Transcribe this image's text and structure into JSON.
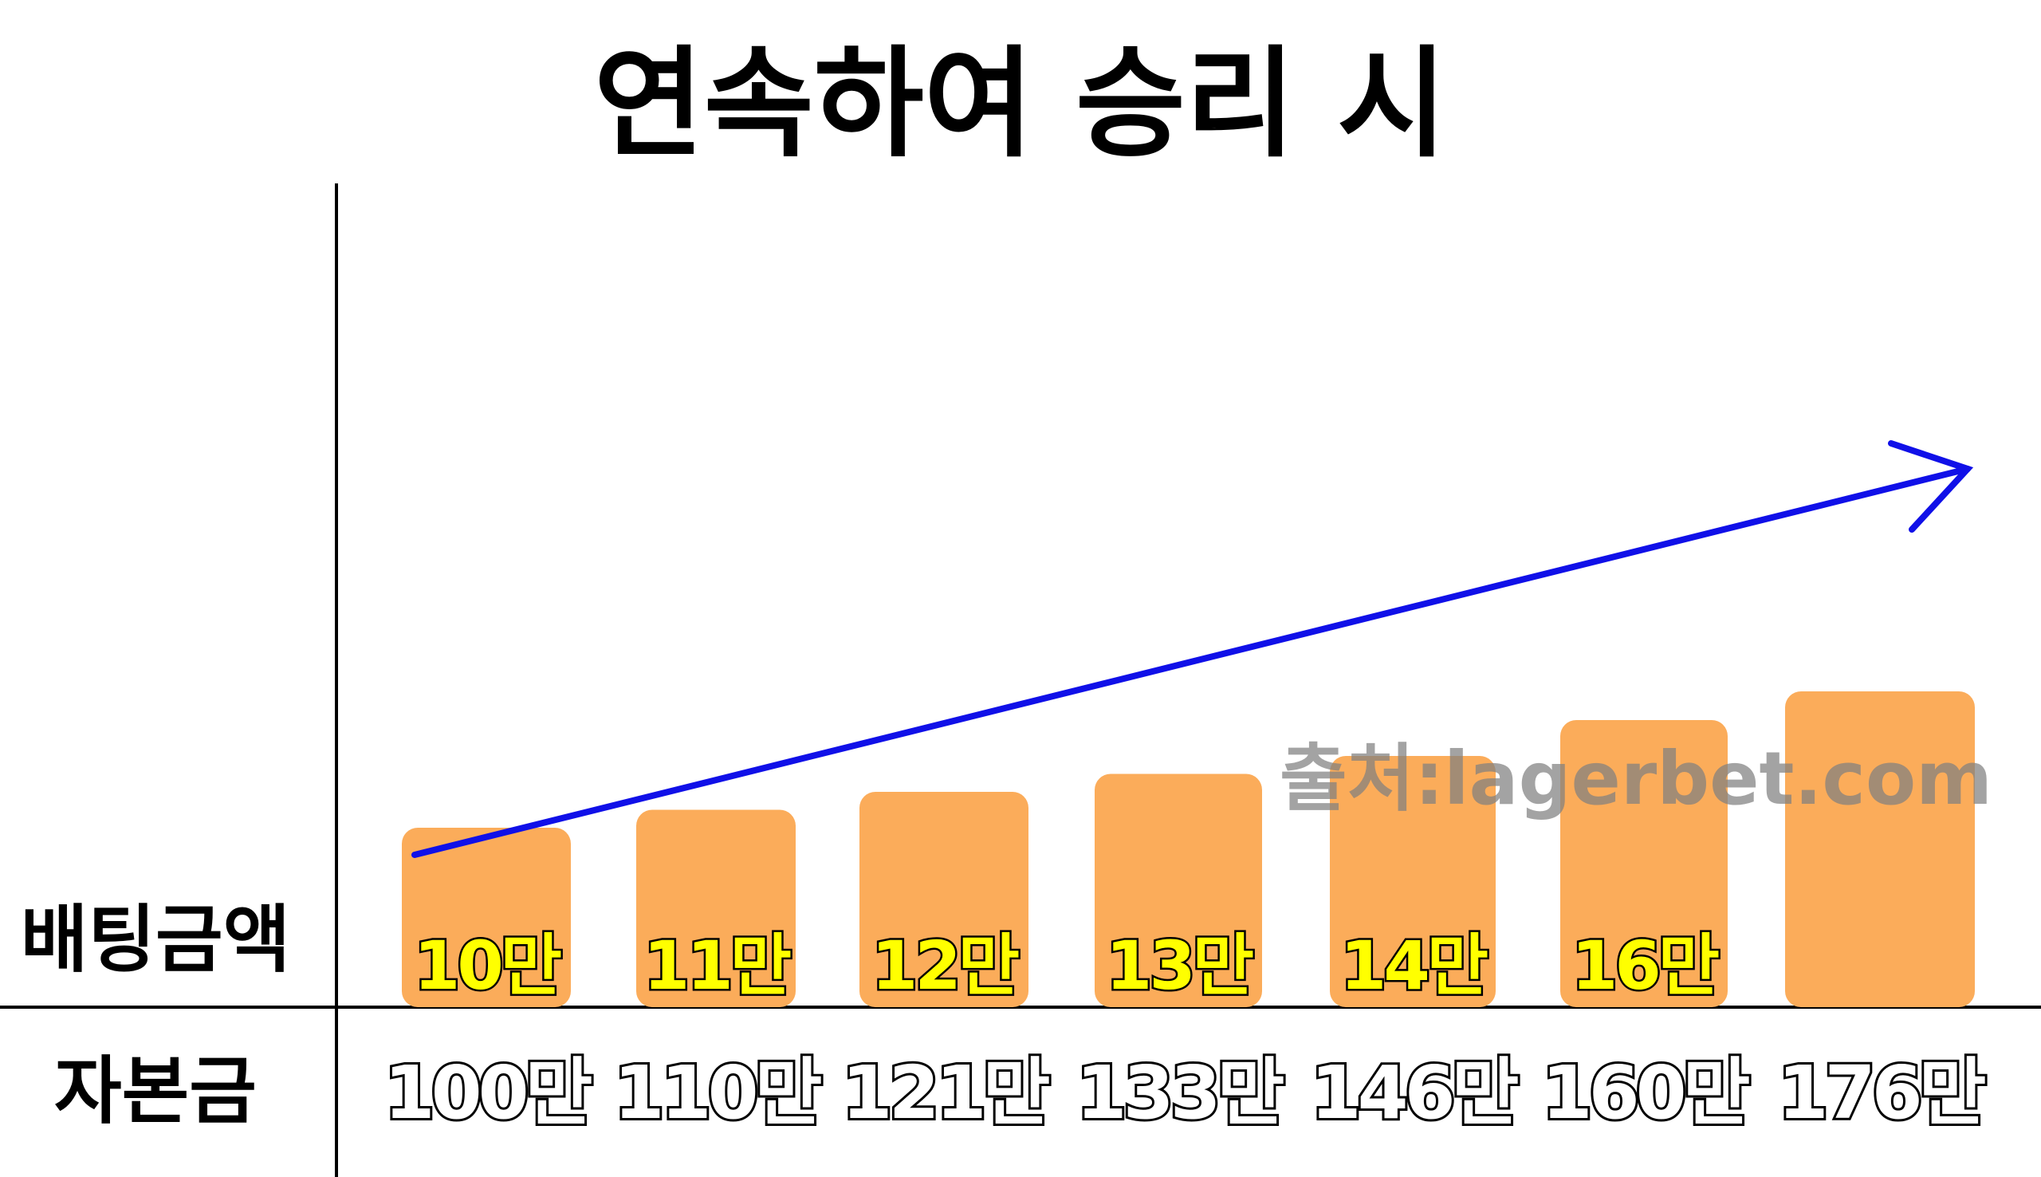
{
  "chart_data": {
    "type": "bar",
    "title": "연속하여 승리 시",
    "rows": {
      "bet_label": "배팅금액",
      "capital_label": "자본금"
    },
    "categories": [
      "100만",
      "110만",
      "121만",
      "133만",
      "146만",
      "160만",
      "176만"
    ],
    "series": [
      {
        "name": "배팅금액",
        "values": [
          10,
          11,
          12,
          13,
          14,
          16,
          17.6
        ],
        "labels": [
          "10만",
          "11만",
          "12만",
          "13만",
          "14만",
          "16만",
          ""
        ]
      }
    ],
    "capital_values": [
      100,
      110,
      121,
      133,
      146,
      160,
      176
    ],
    "ylim": [
      0,
      18
    ],
    "grid": false,
    "trend_arrow": true,
    "watermark": "출처:lagerbet.com",
    "colors": {
      "bar": "#FBAC5A",
      "arrow": "#1010E8",
      "bar_label": "#FFFF00",
      "axis": "#000000",
      "watermark": "#808080"
    }
  }
}
